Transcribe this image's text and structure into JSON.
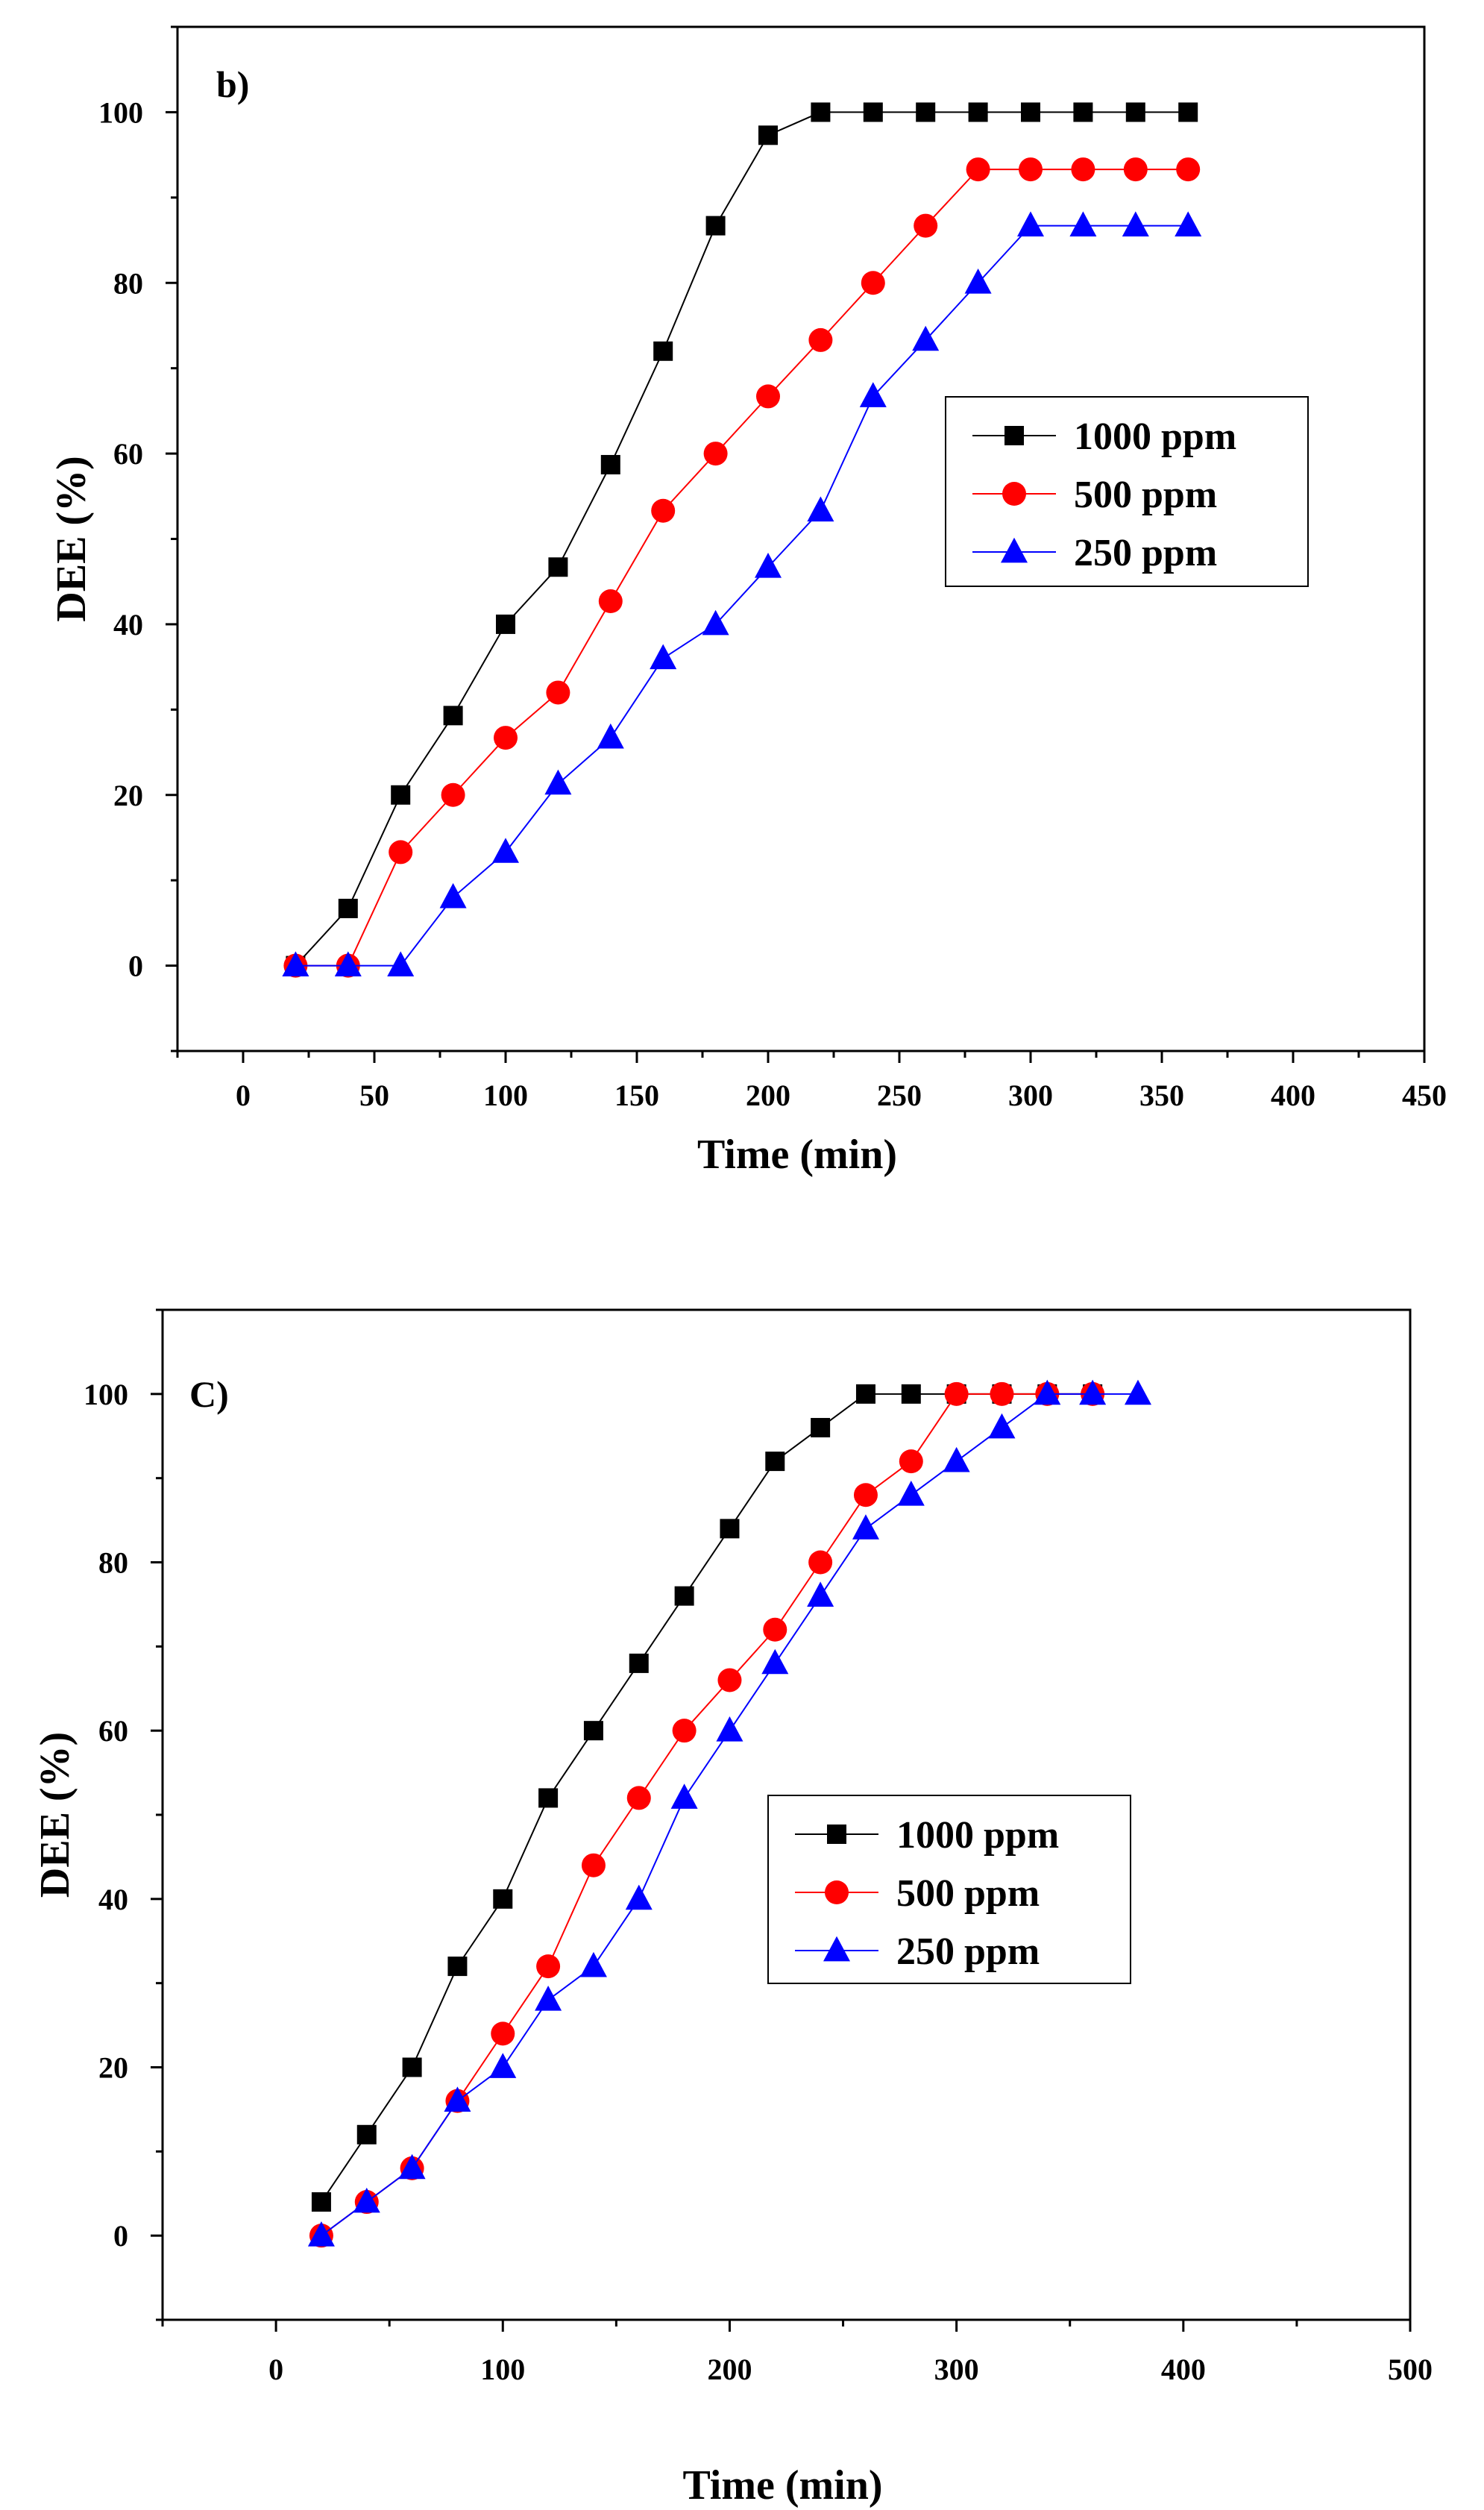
{
  "chart_data": [
    {
      "type": "line",
      "panel_label": "b)",
      "xlabel": "Time (min)",
      "ylabel": "DEE (%)",
      "xlim": [
        -25,
        450
      ],
      "ylim": [
        -10,
        110
      ],
      "xticks": [
        0,
        50,
        100,
        150,
        200,
        250,
        300,
        350,
        400,
        450
      ],
      "yticks": [
        0,
        20,
        40,
        60,
        80,
        100
      ],
      "legend_position": "center-right",
      "x": [
        20,
        40,
        60,
        80,
        100,
        120,
        140,
        160,
        180,
        200,
        220,
        240,
        260,
        280,
        300,
        320,
        340,
        360
      ],
      "series": [
        {
          "name": "1000 ppm",
          "color": "#000000",
          "marker": "square",
          "values": [
            0,
            6.7,
            20,
            29.3,
            40,
            46.7,
            58.7,
            72,
            86.7,
            97.3,
            100,
            100,
            100,
            100,
            100,
            100,
            100,
            100
          ]
        },
        {
          "name": "500 ppm",
          "color": "#ff0000",
          "marker": "circle",
          "values": [
            0,
            0,
            13.3,
            20,
            26.7,
            32,
            42.7,
            53.3,
            60,
            66.7,
            73.3,
            80,
            86.7,
            93.3,
            93.3,
            93.3,
            93.3,
            93.3
          ]
        },
        {
          "name": "250 ppm",
          "color": "#0000ff",
          "marker": "triangle",
          "values": [
            0,
            0,
            0,
            8,
            13.3,
            21.3,
            26.7,
            36,
            40,
            46.7,
            53.3,
            66.7,
            73.3,
            80,
            86.7,
            86.7,
            86.7,
            86.7
          ]
        }
      ]
    },
    {
      "type": "line",
      "panel_label": "C)",
      "xlabel": "Time (min)",
      "ylabel": "DEE (%)",
      "xlim": [
        -50,
        500
      ],
      "ylim": [
        -10,
        110
      ],
      "xticks": [
        0,
        100,
        200,
        300,
        400,
        500
      ],
      "yticks": [
        0,
        20,
        40,
        60,
        80,
        100
      ],
      "legend_position": "center-right",
      "series": [
        {
          "name": "1000 ppm",
          "color": "#000000",
          "marker": "square",
          "x": [
            20,
            40,
            60,
            80,
            100,
            120,
            140,
            160,
            180,
            200,
            220,
            240,
            260,
            280,
            300,
            320,
            340,
            360
          ],
          "values": [
            4,
            12,
            20,
            32,
            40,
            52,
            60,
            68,
            76,
            84,
            92,
            96,
            100,
            100,
            100,
            100,
            100,
            100
          ]
        },
        {
          "name": "500 ppm",
          "color": "#ff0000",
          "marker": "circle",
          "x": [
            20,
            40,
            60,
            80,
            100,
            120,
            140,
            160,
            180,
            200,
            220,
            240,
            260,
            280,
            300,
            320,
            340,
            360
          ],
          "values": [
            0,
            4,
            8,
            16,
            24,
            32,
            44,
            52,
            60,
            66,
            72,
            80,
            88,
            92,
            100,
            100,
            100,
            100
          ]
        },
        {
          "name": "250 ppm",
          "color": "#0000ff",
          "marker": "triangle",
          "x": [
            20,
            40,
            60,
            80,
            100,
            120,
            140,
            160,
            180,
            200,
            220,
            240,
            260,
            280,
            300,
            320,
            340,
            360,
            380
          ],
          "values": [
            0,
            4,
            8,
            16,
            20,
            28,
            32,
            40,
            52,
            60,
            68,
            76,
            84,
            88,
            92,
            96,
            100,
            100,
            100
          ]
        }
      ]
    }
  ]
}
